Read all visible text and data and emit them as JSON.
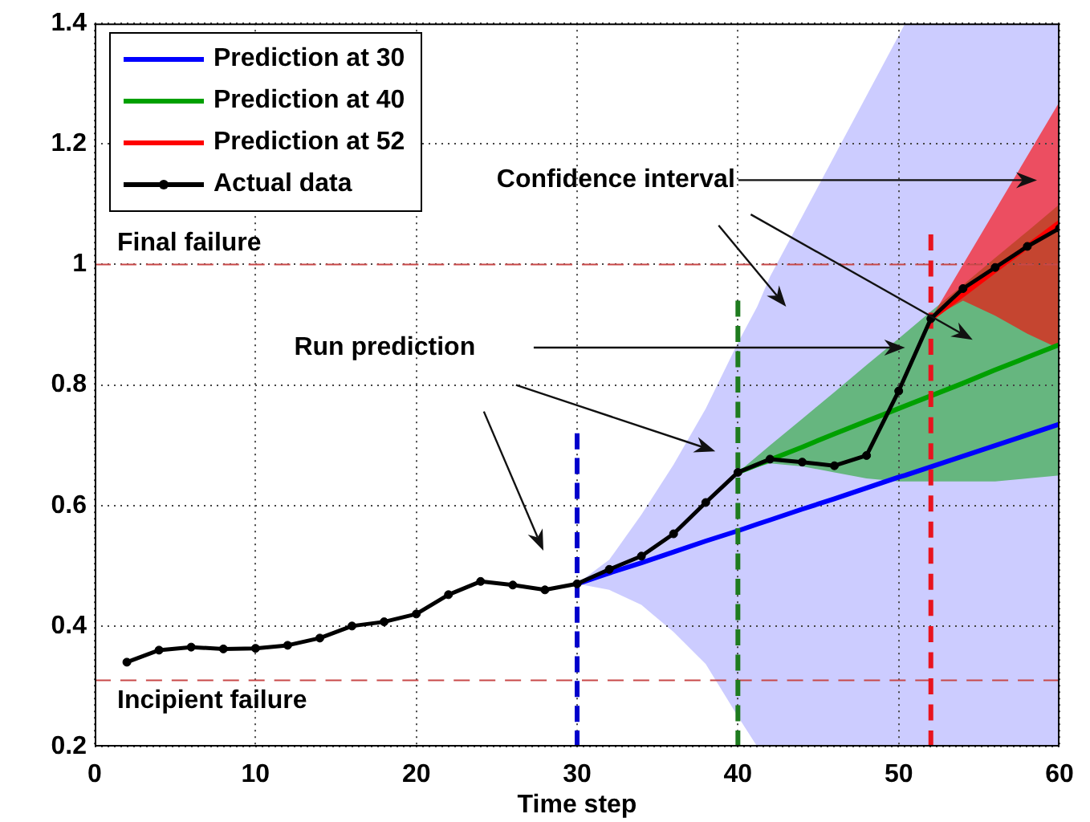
{
  "chart_data": {
    "type": "line",
    "xlabel": "Time step",
    "xlim": [
      0,
      60
    ],
    "ylim": [
      0.2,
      1.4
    ],
    "xticks": [
      0,
      10,
      20,
      30,
      40,
      50,
      60
    ],
    "yticks": [
      0.2,
      0.4,
      0.6,
      0.8,
      1,
      1.2,
      1.4
    ],
    "grid": true,
    "legend": "top left",
    "marker": "none",
    "line_style": "solid",
    "series": [
      {
        "name": "Prediction at 30",
        "color": "#0000ff",
        "x": [
          30,
          32,
          34,
          36,
          38,
          40,
          41.2,
          42,
          44,
          46,
          48,
          50,
          50.4,
          60
        ],
        "values": [
          0.47,
          0.488,
          0.505,
          0.523,
          0.541,
          0.558,
          0.569,
          0.576,
          0.594,
          0.611,
          0.629,
          0.647,
          0.65,
          0.735
        ],
        "lower": [
          0.47,
          0.46,
          0.435,
          0.39,
          0.337,
          0.25,
          0.2,
          0.2,
          0.2,
          0.2,
          0.2,
          0.2,
          0.2,
          0.2
        ],
        "upper": [
          0.47,
          0.51,
          0.585,
          0.668,
          0.761,
          0.87,
          0.93,
          0.98,
          1.08,
          1.18,
          1.28,
          1.38,
          1.4,
          1.4
        ]
      },
      {
        "name": "Prediction at 40",
        "color": "#00a000",
        "x": [
          40,
          42,
          44,
          46,
          48,
          50,
          52,
          54,
          56,
          58,
          60
        ],
        "values": [
          0.655,
          0.676,
          0.697,
          0.719,
          0.74,
          0.761,
          0.782,
          0.803,
          0.825,
          0.846,
          0.867
        ],
        "lower": [
          0.655,
          0.67,
          0.665,
          0.655,
          0.645,
          0.64,
          0.64,
          0.64,
          0.64,
          0.645,
          0.65
        ],
        "upper": [
          0.655,
          0.7,
          0.744,
          0.788,
          0.833,
          0.877,
          0.922,
          0.966,
          1.011,
          1.055,
          1.1
        ]
      },
      {
        "name": "Prediction at 52",
        "color": "#ff0000",
        "x": [
          52,
          54,
          56,
          58,
          60
        ],
        "values": [
          0.91,
          0.95,
          0.99,
          1.03,
          1.07
        ],
        "lower": [
          0.91,
          0.94,
          0.915,
          0.885,
          0.86
        ],
        "upper": [
          0.91,
          1.0,
          1.09,
          1.18,
          1.27
        ]
      },
      {
        "name": "Actual data",
        "color": "#000000",
        "marker": "circle",
        "x": [
          2,
          4,
          6,
          8,
          10,
          12,
          14,
          16,
          18,
          20,
          22,
          24,
          26,
          28,
          30,
          32,
          34,
          36,
          38,
          40,
          42,
          44,
          46,
          48,
          50,
          52,
          54,
          56,
          58,
          60
        ],
        "values": [
          0.34,
          0.36,
          0.365,
          0.362,
          0.363,
          0.368,
          0.38,
          0.4,
          0.407,
          0.42,
          0.452,
          0.474,
          0.468,
          0.46,
          0.47,
          0.494,
          0.516,
          0.553,
          0.605,
          0.655,
          0.677,
          0.672,
          0.666,
          0.683,
          0.79,
          0.91,
          0.96,
          0.995,
          1.03,
          1.06
        ]
      },
      {
        "color": "#0000cc",
        "line_style": "dashed",
        "x": [
          30,
          30
        ],
        "values": [
          0.2,
          0.72
        ]
      },
      {
        "color": "#1e7b1e",
        "line_style": "dashed",
        "x": [
          40,
          40
        ],
        "values": [
          0.2,
          0.94
        ]
      },
      {
        "color": "#e8141e",
        "line_style": "dashed",
        "x": [
          52,
          52
        ],
        "values": [
          0.2,
          1.05
        ]
      }
    ],
    "ref_lines": [
      {
        "axis": "y",
        "value": 1,
        "label": "Final failure",
        "color": "#c84848",
        "line_style": "dashed"
      },
      {
        "axis": "y",
        "value": 0.31,
        "label": "Incipient failure",
        "color": "#c84848",
        "line_style": "dashed"
      }
    ],
    "annotations": [
      "Confidence interval",
      "Run prediction"
    ]
  }
}
